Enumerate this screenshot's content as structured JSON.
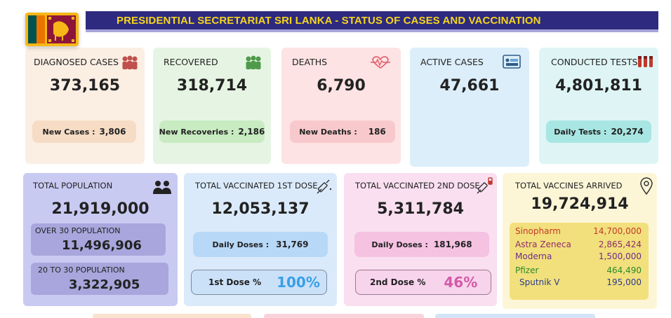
{
  "header": {
    "title": "PRESIDENTIAL SECRETARIAT SRI LANKA - STATUS OF CASES AND VACCINATION"
  },
  "top_cards": {
    "diagnosed": {
      "label": "DIAGNOSED CASES",
      "value": "373,165",
      "pill_label": "New Cases :",
      "pill_value": "3,806",
      "icon": "group-people-icon"
    },
    "recovered": {
      "label": "RECOVERED",
      "value": "318,714",
      "pill_label": "New Recoveries :",
      "pill_value": "2,186",
      "icon": "recovered-people-icon"
    },
    "deaths": {
      "label": "DEATHS",
      "value": "6,790",
      "pill_label": "New Deaths :",
      "pill_value": "186",
      "icon": "heartbeat-icon"
    },
    "active": {
      "label": "ACTIVE CASES",
      "value": "47,661",
      "icon": "hospital-bed-icon"
    },
    "tests": {
      "label": "CONDUCTED TESTS",
      "value": "4,801,811",
      "pill_label": "Daily Tests :",
      "pill_value": "20,274",
      "icon": "test-tubes-icon"
    }
  },
  "population": {
    "label": "TOTAL POPULATION",
    "value": "21,919,000",
    "over30_label": "OVER 30 POPULATION",
    "over30_value": "11,496,906",
    "age20_30_label": "20 TO 30 POPULATION",
    "age20_30_value": "3,322,905",
    "icon": "people-icon"
  },
  "dose1": {
    "label": "TOTAL VACCINATED 1ST DOSE",
    "value": "12,053,137",
    "daily_label": "Daily Doses :",
    "daily_value": "31,769",
    "pct_label": "1st Dose %",
    "pct_value": "100%",
    "icon": "syringe-icon"
  },
  "dose2": {
    "label": "TOTAL VACCINATED 2ND DOSE",
    "value": "5,311,784",
    "daily_label": "Daily Doses :",
    "daily_value": "181,968",
    "pct_label": "2nd Dose %",
    "pct_value": "46%",
    "icon": "syringe-vial-icon"
  },
  "vaccines": {
    "label": "TOTAL VACCINES ARRIVED",
    "value": "19,724,914",
    "icon": "location-pin-icon",
    "items": [
      {
        "name": "Sinopharm",
        "value": "14,700,000"
      },
      {
        "name": "Astra Zeneca",
        "value": "2,865,424"
      },
      {
        "name": "Moderna",
        "value": "1,500,000"
      },
      {
        "name": "Pfizer",
        "value": "464,490"
      },
      {
        "name": "Sputnik V",
        "value": "195,000"
      }
    ]
  },
  "colors": {
    "title_bar": "#2e2a80",
    "title_text": "#f5d61b",
    "diagnosed_bg": "#fbeee3",
    "recovered_bg": "#e6f5e3",
    "deaths_bg": "#fde3e3",
    "active_bg": "#dceefa",
    "tests_bg": "#dff5f5",
    "population_bg": "#c9caf2",
    "dose1_bg": "#dbeafb",
    "dose2_bg": "#fadff0",
    "vaccines_bg": "#fcf6d7",
    "sinopharm": "#c0392b",
    "astra": "#8e2b6b",
    "moderna": "#6b2b8e",
    "pfizer": "#2a8a2a",
    "sputnik": "#2b3b8e"
  }
}
